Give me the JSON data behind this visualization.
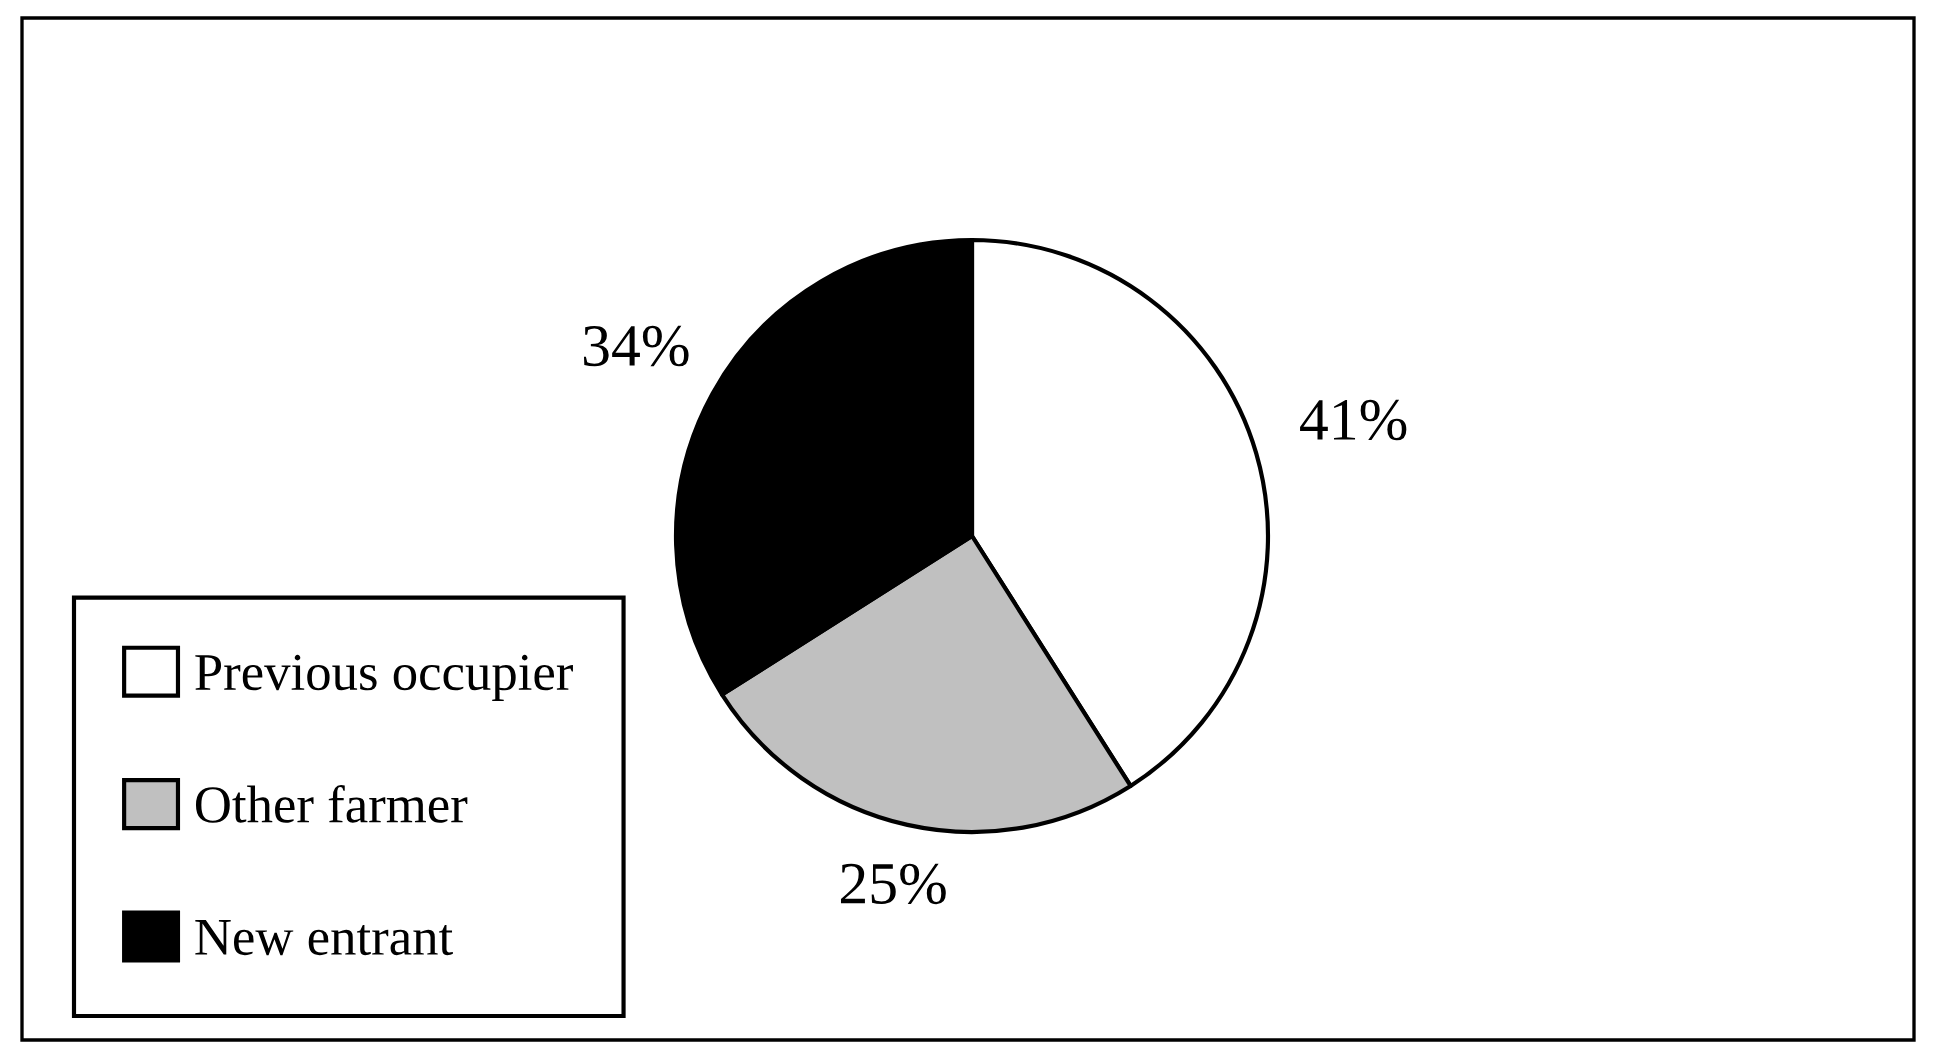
{
  "chart_data": {
    "type": "pie",
    "categories": [
      "Previous occupier",
      "Other farmer",
      "New entrant"
    ],
    "values": [
      41,
      25,
      34
    ],
    "colors": [
      "#ffffff",
      "#c0c0c0",
      "#000000"
    ],
    "value_labels": [
      "41%",
      "25%",
      "34%"
    ],
    "legend": "bottom left"
  }
}
